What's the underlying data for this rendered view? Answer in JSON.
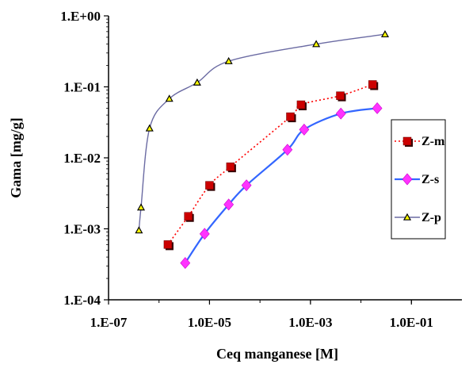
{
  "chart_data": {
    "type": "scatter",
    "xlabel": "Ceq manganese [M]",
    "ylabel": "Gama [mg/g]",
    "x_scale": "log",
    "y_scale": "log",
    "xlim": [
      1e-07,
      1
    ],
    "ylim": [
      0.0001,
      1
    ],
    "x_ticks": [
      1e-07,
      1e-05,
      0.001,
      0.1
    ],
    "x_tick_labels": [
      "1.E-07",
      "1.0E-05",
      "1.0E-03",
      "1.0E-01"
    ],
    "y_ticks": [
      1,
      0.1,
      0.01,
      0.001,
      0.0001
    ],
    "y_tick_labels": [
      "1.E+00",
      "1.E-01",
      "1.E-02",
      "1.E-03",
      "1.E-04"
    ],
    "grid": false,
    "legend_position": "right",
    "series": [
      {
        "name": "Z-m",
        "style": "dotted",
        "color": "#ff0000",
        "marker": "square",
        "marker_color": "#cc0000",
        "x": [
          1.5e-06,
          3.8e-06,
          1e-05,
          2.6e-05,
          0.0004,
          0.00065,
          0.0039,
          0.017
        ],
        "y": [
          0.0006,
          0.0015,
          0.0041,
          0.0075,
          0.038,
          0.056,
          0.075,
          0.108
        ]
      },
      {
        "name": "Z-s",
        "style": "solid",
        "color": "#3366ff",
        "marker": "diamond",
        "marker_color": "#ff33ff",
        "x": [
          3.3e-06,
          8e-06,
          2.4e-05,
          5.4e-05,
          0.00035,
          0.00075,
          0.004,
          0.021
        ],
        "y": [
          0.00033,
          0.00085,
          0.0022,
          0.0041,
          0.013,
          0.025,
          0.042,
          0.05
        ]
      },
      {
        "name": "Z-p",
        "style": "solid",
        "color": "#6b6ba3",
        "marker": "triangle",
        "marker_color": "#ffff00",
        "x": [
          4e-07,
          4.4e-07,
          6.5e-07,
          1.6e-06,
          5.7e-06,
          2.4e-05,
          0.0013,
          0.03
        ],
        "y": [
          0.00095,
          0.002,
          0.026,
          0.068,
          0.115,
          0.23,
          0.4,
          0.55
        ]
      }
    ]
  }
}
